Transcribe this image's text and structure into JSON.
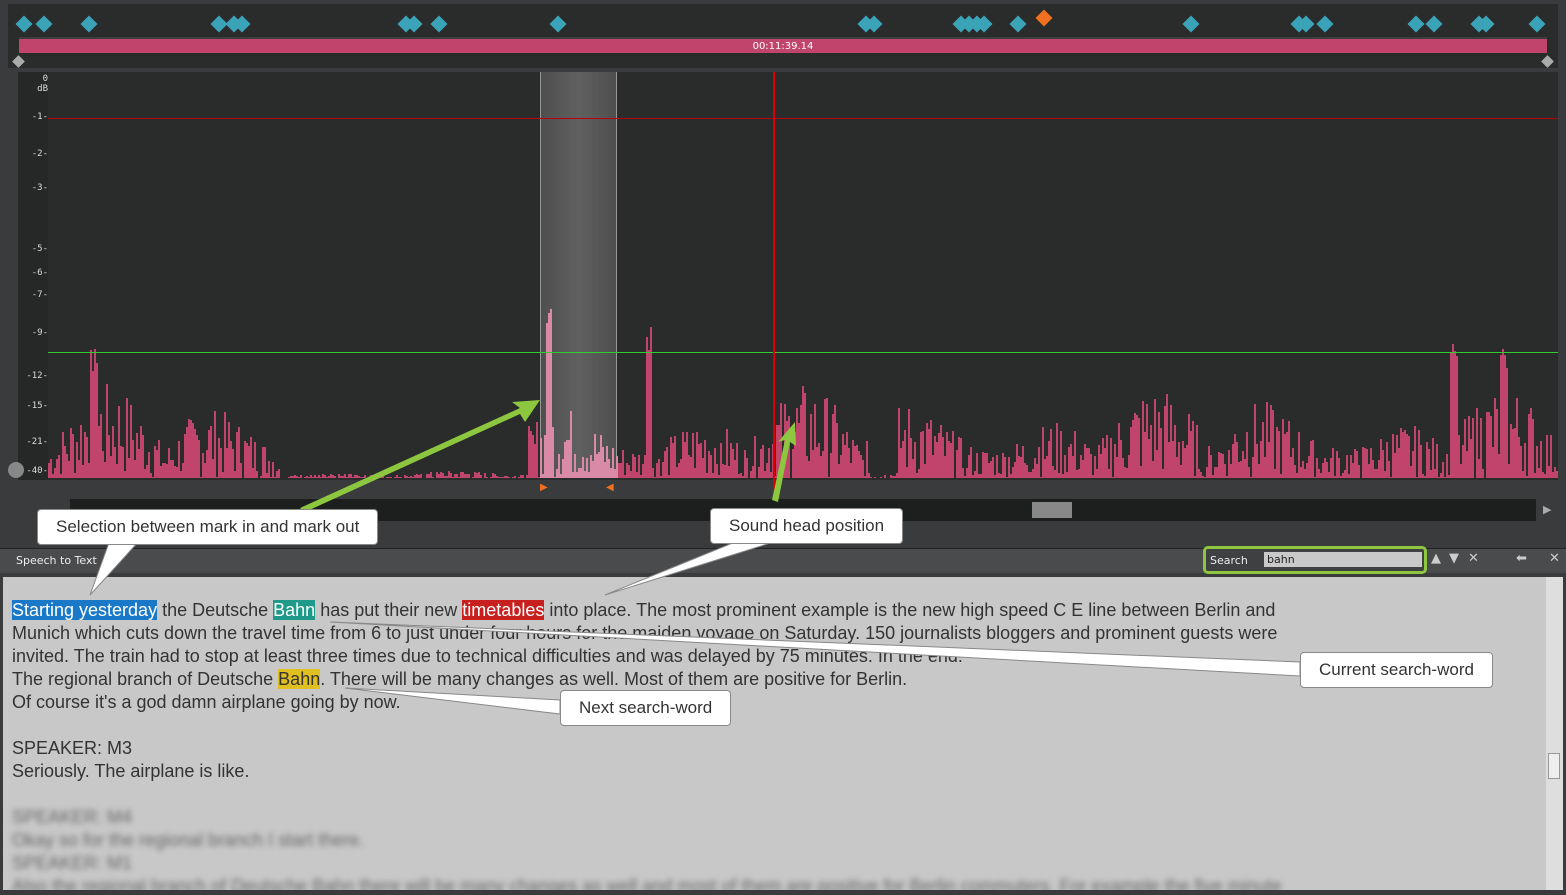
{
  "timeline": {
    "timecode": "00:11:39.14"
  },
  "db_scale": {
    "unit": "dB",
    "ticks": [
      "0",
      "-1",
      "-2",
      "-3",
      "-5",
      "-6",
      "-7",
      "-9",
      "-12",
      "-15",
      "-21",
      "-40"
    ]
  },
  "colors": {
    "waveform": "#c0446c",
    "marker": "#3aa3b8",
    "playhead": "#dd0000",
    "threshold_top": "#bb0000",
    "threshold_level": "#33cc33",
    "callout_arrow": "#8dc63f",
    "selection_highlight": "#1a78c8",
    "current_search": "#1f9a8a",
    "next_search": "#e0c020",
    "current_word": "#c8201e"
  },
  "panel": {
    "title": "Speech to Text",
    "search_label": "Search",
    "search_value": "bahn"
  },
  "transcript": {
    "l1_sel": "Starting yesterday",
    "l1_a": " the Deutsche ",
    "l1_cur": "Bahn",
    "l1_b": " has put their new ",
    "l1_word": "timetables",
    "l1_c": " into place. The most prominent example is the new high speed C E line between Berlin and",
    "l2": "Munich which cuts down the travel time from 6 to just under four hours for the maiden voyage on Saturday. 150 journalists bloggers and prominent guests were",
    "l3": "invited. The train had to stop at least three times due to technical difficulties and was delayed by 75 minutes. In the end.",
    "l4_a": "The regional branch of Deutsche ",
    "l4_next": "Bahn",
    "l4_b": ". There will be many changes as well. Most of them are positive for Berlin.",
    "l5": "Of course it's a god damn airplane going by now.",
    "l6": "SPEAKER: M3",
    "l7": "Seriously. The airplane is like.",
    "b1": "SPEAKER: M4",
    "b2": "Okay so for the regional branch I start there.",
    "b3": "SPEAKER: M1",
    "b4": "Also the regional branch of Deutsche Bahn there will be many changes as well and most of them are positive for Berlin commuters. For example the five minute"
  },
  "callouts": {
    "selection": "Selection between mark in and mark out",
    "sound_head": "Sound head position",
    "current": "Current search-word",
    "next": "Next search-word"
  }
}
